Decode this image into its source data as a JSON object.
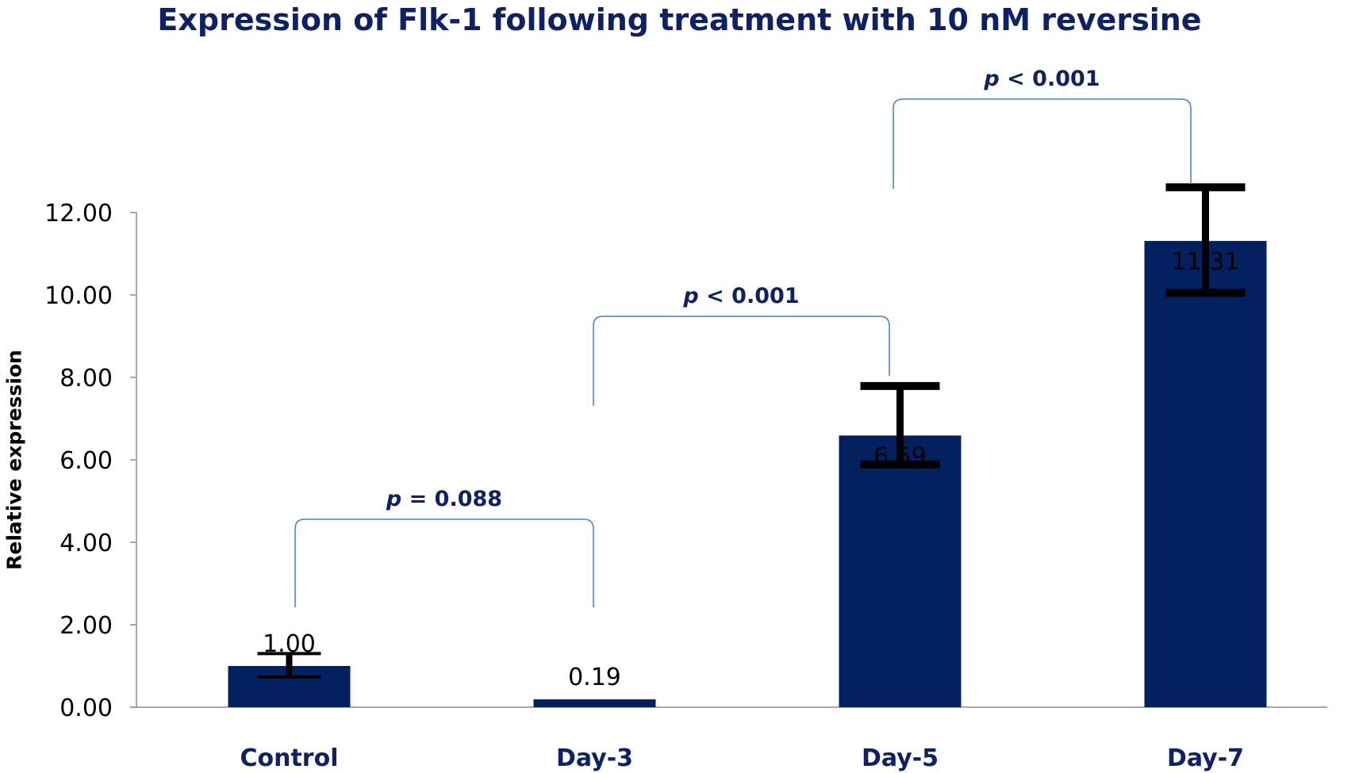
{
  "chart_data": {
    "type": "bar",
    "title": "Expression of Flk-1 following treatment with 10 nM reversine",
    "xlabel": "",
    "ylabel": "Relative expression",
    "categories": [
      "Control",
      "Day-3",
      "Day-5",
      "Day-7"
    ],
    "values": [
      1.0,
      0.19,
      6.59,
      11.31
    ],
    "value_labels": [
      "1.00",
      "0.19",
      "6.59",
      "11.31"
    ],
    "error_bars": [
      {
        "low": 0.73,
        "high": 1.3
      },
      {
        "low": 0.19,
        "high": 0.19
      },
      {
        "low": 5.89,
        "high": 7.79
      },
      {
        "low": 10.05,
        "high": 12.61
      }
    ],
    "ylim": [
      0,
      12
    ],
    "yticks": [
      0,
      2,
      4,
      6,
      8,
      10,
      12
    ],
    "ytick_labels": [
      "0.00",
      "2.00",
      "4.00",
      "6.00",
      "8.00",
      "10.00",
      "12.00"
    ],
    "grid": false,
    "legend": "none",
    "bar_color": "#03205f",
    "error_color": "#000000",
    "bracket_color": "#4a7cc9",
    "significance": [
      {
        "from": 0,
        "to": 1,
        "p_symbol": "p",
        "text": " = 0.088"
      },
      {
        "from": 1,
        "to": 2,
        "p_symbol": "p",
        "text": " < 0.001"
      },
      {
        "from": 2,
        "to": 3,
        "p_symbol": "p",
        "text": " < 0.001"
      }
    ]
  }
}
